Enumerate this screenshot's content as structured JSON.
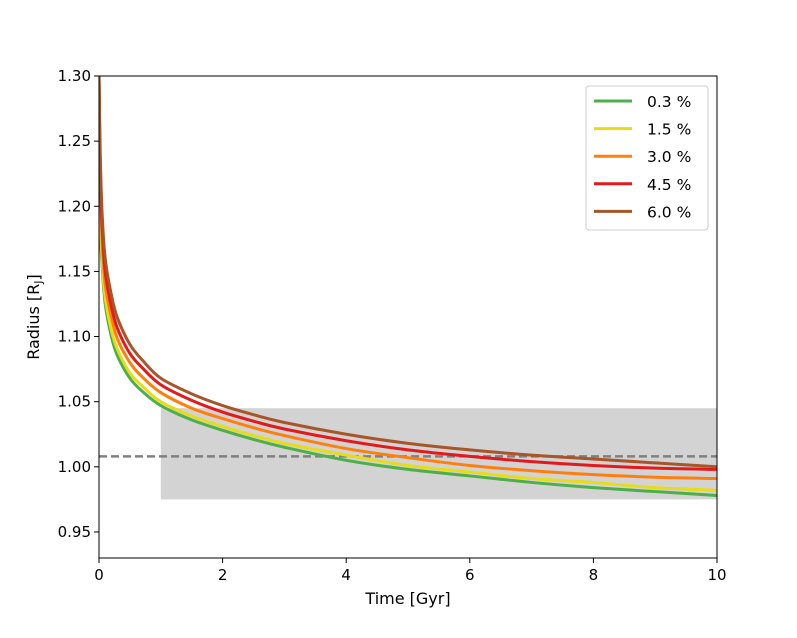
{
  "chart_data": {
    "type": "line",
    "title": "",
    "xlabel": "Time [Gyr]",
    "ylabel_main": "Radius [R",
    "ylabel_sub": "J",
    "ylabel_close": "]",
    "xlim": [
      0,
      10
    ],
    "ylim": [
      0.93,
      1.3
    ],
    "xticks": [
      0,
      2,
      4,
      6,
      8,
      10
    ],
    "xtick_labels": [
      "0",
      "2",
      "4",
      "6",
      "8",
      "10"
    ],
    "yticks": [
      0.95,
      1.0,
      1.05,
      1.1,
      1.15,
      1.2,
      1.25,
      1.3
    ],
    "ytick_labels": [
      "0.95",
      "1.00",
      "1.05",
      "1.10",
      "1.15",
      "1.20",
      "1.25",
      "1.30"
    ],
    "legend_position": "top-right",
    "band": {
      "x0": 1.0,
      "x1": 10.0,
      "y0": 0.975,
      "y1": 1.045,
      "color": "#d3d3d3"
    },
    "reference_line": {
      "y": 1.008,
      "color": "#808080",
      "style": "dashed"
    },
    "x": [
      0.0,
      0.02,
      0.05,
      0.1,
      0.2,
      0.3,
      0.5,
      0.7,
      1.0,
      1.5,
      2.0,
      2.5,
      3.0,
      4.0,
      5.0,
      6.0,
      7.0,
      8.0,
      9.0,
      10.0
    ],
    "series": [
      {
        "name": "0.3 %",
        "color": "#4daf4a",
        "values": [
          1.3,
          1.19,
          1.155,
          1.125,
          1.1,
          1.085,
          1.068,
          1.058,
          1.047,
          1.036,
          1.028,
          1.021,
          1.015,
          1.005,
          0.998,
          0.993,
          0.988,
          0.984,
          0.981,
          0.978
        ]
      },
      {
        "name": "1.5 %",
        "color": "#e6dc1a",
        "values": [
          1.3,
          1.2,
          1.16,
          1.13,
          1.105,
          1.09,
          1.072,
          1.062,
          1.05,
          1.039,
          1.031,
          1.024,
          1.018,
          1.009,
          1.001,
          0.996,
          0.991,
          0.988,
          0.984,
          0.982
        ]
      },
      {
        "name": "3.0 %",
        "color": "#ff7f0e",
        "values": [
          1.3,
          1.22,
          1.175,
          1.14,
          1.115,
          1.098,
          1.08,
          1.069,
          1.057,
          1.045,
          1.037,
          1.03,
          1.024,
          1.014,
          1.007,
          1.001,
          0.997,
          0.994,
          0.992,
          0.991
        ]
      },
      {
        "name": "4.5 %",
        "color": "#e31a1c",
        "values": [
          1.3,
          1.23,
          1.185,
          1.15,
          1.123,
          1.106,
          1.087,
          1.076,
          1.063,
          1.051,
          1.042,
          1.035,
          1.029,
          1.02,
          1.013,
          1.008,
          1.004,
          1.001,
          0.999,
          0.998
        ]
      },
      {
        "name": "6.0 %",
        "color": "#a65628",
        "values": [
          1.3,
          1.24,
          1.195,
          1.16,
          1.132,
          1.114,
          1.094,
          1.082,
          1.068,
          1.056,
          1.047,
          1.04,
          1.034,
          1.025,
          1.018,
          1.013,
          1.009,
          1.006,
          1.003,
          1.0
        ]
      }
    ]
  }
}
